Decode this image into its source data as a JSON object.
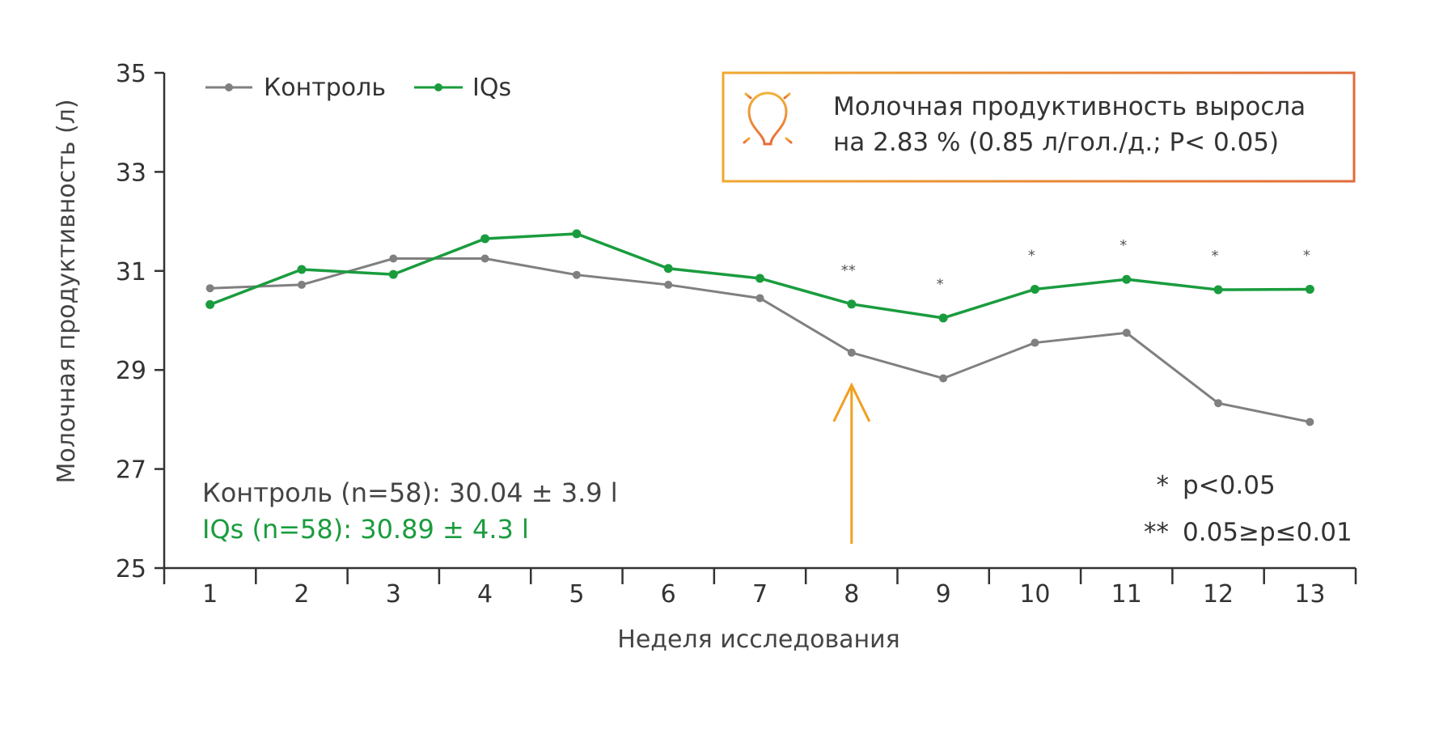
{
  "chart_data": {
    "type": "line",
    "xlabel": "Неделя исследования",
    "ylabel": "Молочная продуктивность (л)",
    "categories": [
      "1",
      "2",
      "3",
      "4",
      "5",
      "6",
      "7",
      "8",
      "9",
      "10",
      "11",
      "12",
      "13"
    ],
    "ylim": [
      25,
      35
    ],
    "yticks": [
      "25",
      "27",
      "29",
      "31",
      "33",
      "35"
    ],
    "legend_position": "top-left",
    "grid": false,
    "series": [
      {
        "name": "Контроль",
        "color": "#808080",
        "values": [
          30.65,
          30.72,
          31.25,
          31.25,
          30.92,
          30.72,
          30.45,
          29.35,
          28.83,
          29.55,
          29.75,
          28.33,
          27.95
        ]
      },
      {
        "name": "IQs",
        "color": "#1a9c3e",
        "values": [
          30.32,
          31.03,
          30.93,
          31.65,
          31.75,
          31.05,
          30.85,
          30.33,
          30.05,
          30.63,
          30.83,
          30.62,
          30.63
        ]
      }
    ],
    "significance": [
      {
        "x": "8",
        "mark": "**"
      },
      {
        "x": "9",
        "mark": "*"
      },
      {
        "x": "10",
        "mark": "*"
      },
      {
        "x": "11",
        "mark": "*"
      },
      {
        "x": "12",
        "mark": "*"
      },
      {
        "x": "13",
        "mark": "*"
      }
    ],
    "arrow_at": "8",
    "stats": [
      {
        "text": "Контроль (n=58): 30.04 ± 3.9 l",
        "color": "#444444"
      },
      {
        "text": "IQs (n=58): 30.89 ± 4.3 l",
        "color": "#1a9c3e"
      }
    ],
    "significance_legend": [
      {
        "mark": "*",
        "text": "p<0.05"
      },
      {
        "mark": "**",
        "text": "0.05≥p≤0.01"
      }
    ],
    "callout": {
      "lines": [
        "Молочная продуктивность выросла",
        "на 2.83 % (0.85 л/гол./д.; P< 0.05)"
      ],
      "border_color": "#e8863a",
      "icon": "lightbulb-icon"
    },
    "arrow_color": "#f0a020"
  }
}
